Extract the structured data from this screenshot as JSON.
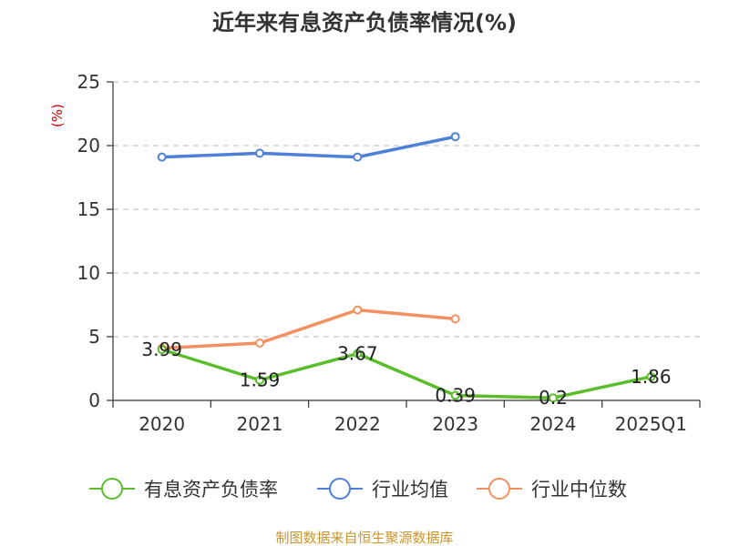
{
  "chart_data": {
    "type": "line",
    "title": "近年来有息资产负债率情况(%)",
    "ylabel": "(%)",
    "categories": [
      "2020",
      "2021",
      "2022",
      "2023",
      "2024",
      "2025Q1"
    ],
    "ylim": [
      0,
      25
    ],
    "yticks": [
      0,
      5,
      10,
      15,
      20,
      25
    ],
    "grid": true,
    "legend_position": "bottom",
    "series": [
      {
        "name": "有息资产负债率",
        "color": "#5bbd2b",
        "values": [
          3.99,
          1.59,
          3.67,
          0.39,
          0.2,
          1.86
        ],
        "data_labels": [
          "3.99",
          "1.59",
          "3.67",
          "0.39",
          "0.2",
          "1.86"
        ]
      },
      {
        "name": "行业均值",
        "color": "#4e7fd9",
        "values": [
          19.1,
          19.4,
          19.1,
          20.7,
          null,
          null
        ]
      },
      {
        "name": "行业中位数",
        "color": "#f29060",
        "values": [
          4.1,
          4.5,
          7.1,
          6.4,
          null,
          null
        ]
      }
    ]
  },
  "footer": {
    "source": "制图数据来自恒生聚源数据库"
  }
}
